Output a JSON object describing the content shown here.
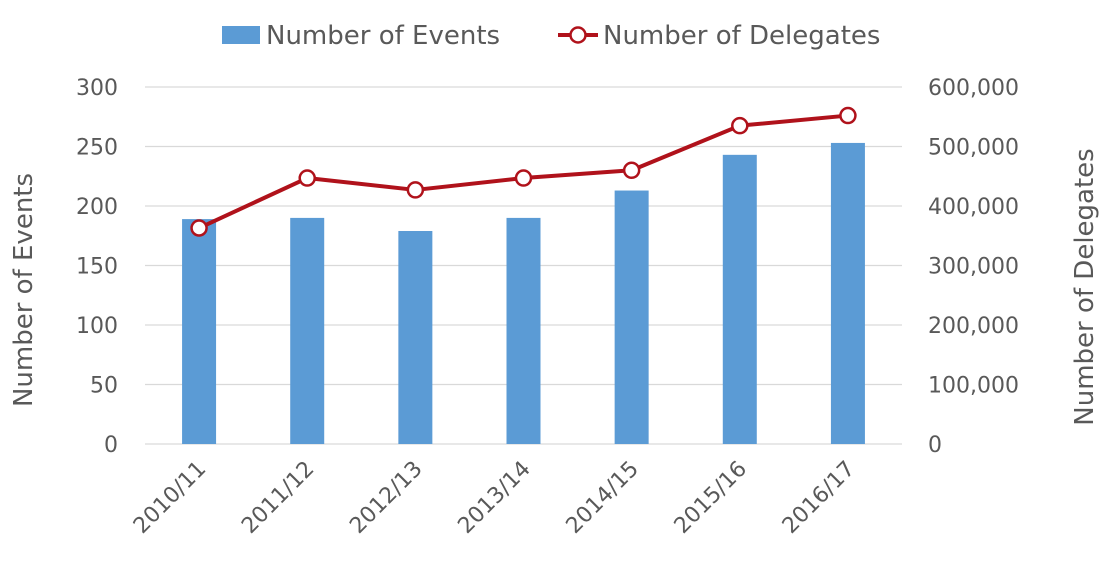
{
  "chart_data": {
    "type": "bar",
    "categories": [
      "2010/11",
      "2011/12",
      "2012/13",
      "2013/14",
      "2014/15",
      "2015/16",
      "2016/17"
    ],
    "series": [
      {
        "name": "Number of Events",
        "type": "bar",
        "axis": "left",
        "color": "#5b9bd5",
        "values": [
          189,
          190,
          179,
          190,
          213,
          243,
          253
        ]
      },
      {
        "name": "Number of Delegates",
        "type": "line",
        "axis": "right",
        "color": "#b0121b",
        "marker": "open-circle",
        "values": [
          363000,
          447000,
          427000,
          447000,
          460000,
          535000,
          552000
        ]
      }
    ],
    "ylabel": "Number of Events",
    "y2label": "Number of Delegates",
    "ylim": [
      0,
      300
    ],
    "y2lim": [
      0,
      600000
    ],
    "yticks": [
      "0",
      "50",
      "100",
      "150",
      "200",
      "250",
      "300"
    ],
    "y2ticks": [
      "0",
      "100,000",
      "200,000",
      "300,000",
      "400,000",
      "500,000",
      "600,000"
    ],
    "grid": true,
    "legend_position": "top-center",
    "gridline_color": "#d9d9d9",
    "text_color": "#595959"
  }
}
